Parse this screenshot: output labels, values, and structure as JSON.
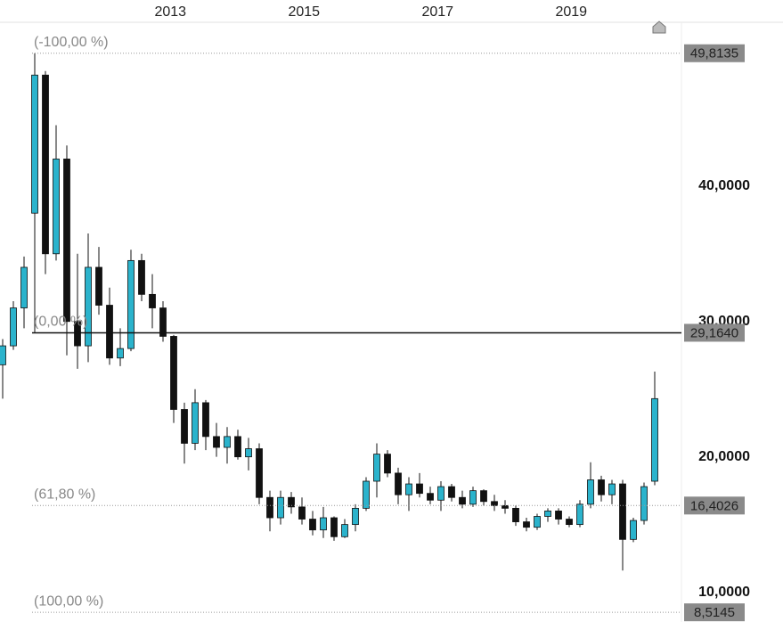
{
  "chart_data": {
    "type": "candlestick",
    "x": [
      2010.49,
      2010.65,
      2010.81,
      2010.97,
      2011.13,
      2011.29,
      2011.45,
      2011.61,
      2011.77,
      2011.93,
      2012.09,
      2012.25,
      2012.41,
      2012.57,
      2012.73,
      2012.89,
      2013.05,
      2013.21,
      2013.37,
      2013.53,
      2013.69,
      2013.85,
      2014.01,
      2014.17,
      2014.33,
      2014.49,
      2014.65,
      2014.81,
      2014.97,
      2015.13,
      2015.29,
      2015.45,
      2015.61,
      2015.77,
      2015.93,
      2016.09,
      2016.25,
      2016.41,
      2016.57,
      2016.73,
      2016.89,
      2017.05,
      2017.21,
      2017.37,
      2017.53,
      2017.69,
      2017.85,
      2018.01,
      2018.17,
      2018.33,
      2018.49,
      2018.65,
      2018.81,
      2018.97,
      2019.13,
      2019.29,
      2019.45,
      2019.61,
      2019.77,
      2019.93,
      2020.09,
      2020.25
    ],
    "open": [
      26.8,
      28.2,
      31.0,
      38.0,
      48.2,
      35.0,
      42.0,
      30.0,
      28.2,
      34.0,
      31.2,
      27.3,
      28.0,
      34.5,
      32.0,
      31.0,
      28.9,
      23.5,
      21.0,
      24.0,
      21.5,
      20.7,
      21.5,
      20.0,
      20.6,
      17.0,
      15.5,
      17.0,
      16.3,
      15.4,
      14.6,
      15.5,
      14.1,
      15.0,
      16.2,
      18.2,
      20.2,
      18.8,
      17.2,
      18.0,
      17.3,
      16.8,
      17.8,
      17.0,
      16.5,
      17.5,
      16.7,
      16.4,
      16.2,
      15.2,
      14.8,
      15.6,
      16.0,
      15.4,
      15.0,
      16.5,
      18.3,
      17.2,
      18.0,
      13.9,
      15.3,
      18.2
    ],
    "high": [
      28.7,
      31.5,
      34.8,
      49.8135,
      48.5,
      44.5,
      43.0,
      35.0,
      36.5,
      35.5,
      32.5,
      29.5,
      35.3,
      35.0,
      33.5,
      31.5,
      29.0,
      24.0,
      25.0,
      24.2,
      22.5,
      22.2,
      22.0,
      21.4,
      21.0,
      17.5,
      17.5,
      17.4,
      17.0,
      16.0,
      16.3,
      15.6,
      15.4,
      16.5,
      18.5,
      21.0,
      20.5,
      19.2,
      18.5,
      18.8,
      17.8,
      18.2,
      18.0,
      17.5,
      17.8,
      17.6,
      17.2,
      16.8,
      16.4,
      15.5,
      15.8,
      16.2,
      16.2,
      15.6,
      16.8,
      19.6,
      18.6,
      18.3,
      18.3,
      15.5,
      18.1,
      26.3
    ],
    "low": [
      24.3,
      27.9,
      29.5,
      29.2,
      33.5,
      34.5,
      27.5,
      26.5,
      27.0,
      30.5,
      26.8,
      26.7,
      27.8,
      31.5,
      29.5,
      28.5,
      22.5,
      19.5,
      20.5,
      20.5,
      20.0,
      19.5,
      19.8,
      19.0,
      16.5,
      14.5,
      15.0,
      15.8,
      15.0,
      14.2,
      14.0,
      13.8,
      14.0,
      14.5,
      16.0,
      17.0,
      18.5,
      16.5,
      16.0,
      17.0,
      16.5,
      16.0,
      16.7,
      16.2,
      16.3,
      16.4,
      16.0,
      15.8,
      14.9,
      14.5,
      14.6,
      15.2,
      15.0,
      14.8,
      14.8,
      16.2,
      16.7,
      16.5,
      11.6,
      13.7,
      15.0,
      17.9
    ],
    "close": [
      28.2,
      31.0,
      34.0,
      48.2,
      35.0,
      42.0,
      30.0,
      28.2,
      34.0,
      31.2,
      27.3,
      28.0,
      34.5,
      32.0,
      31.0,
      28.9,
      23.5,
      21.0,
      24.0,
      21.5,
      20.7,
      21.5,
      20.0,
      20.6,
      17.0,
      15.5,
      17.0,
      16.3,
      15.4,
      14.6,
      15.5,
      14.1,
      15.0,
      16.2,
      18.2,
      20.2,
      18.8,
      17.2,
      18.0,
      17.3,
      16.8,
      17.8,
      17.0,
      16.5,
      17.5,
      16.7,
      16.4,
      16.2,
      15.2,
      14.8,
      15.6,
      16.0,
      15.4,
      15.0,
      16.5,
      18.3,
      17.2,
      18.0,
      13.9,
      15.3,
      17.8,
      24.3
    ],
    "up_color": "#2bb3cc",
    "down_color": "#111111",
    "xlim": [
      2010.45,
      2020.65
    ],
    "xticks": [
      2013,
      2015,
      2017,
      2019
    ],
    "ylim": [
      7.8,
      52.1
    ],
    "yticks": [
      {
        "value": 10,
        "label": "10,0000"
      },
      {
        "value": 20,
        "label": "20,0000"
      },
      {
        "value": 30,
        "label": "30,0000"
      },
      {
        "value": 40,
        "label": "40,0000"
      }
    ],
    "levels": [
      {
        "label": "(-100,00 %)",
        "value": 49.8135,
        "value_label": "49,8135",
        "line_style": "dotted"
      },
      {
        "label": "(0,00 %)",
        "value": 29.164,
        "value_label": "29,1640",
        "line_style": "solid"
      },
      {
        "label": "(61,80 %)",
        "value": 16.4026,
        "value_label": "16,4026",
        "line_style": "dotted"
      },
      {
        "label": "(100,00 %)",
        "value": 8.5145,
        "value_label": "8,5145",
        "line_style": "dotted"
      }
    ]
  }
}
